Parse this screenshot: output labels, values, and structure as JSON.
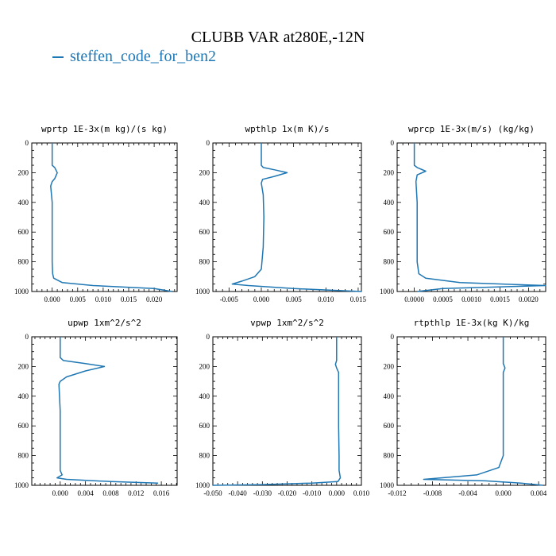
{
  "figure": {
    "title": "CLUBB VAR at280E,-12N",
    "legend_label": "steffen_code_for_ben2",
    "line_color": "#1f77b4"
  },
  "chart_data": [
    {
      "type": "line",
      "title": "wprtp  1E-3x(m kg)/(s kg)",
      "ylim": [
        1000,
        0
      ],
      "yticks": [
        0,
        200,
        400,
        600,
        800,
        1000
      ],
      "ytick_labels": [
        "0",
        "200",
        "400",
        "600",
        "800",
        "1000"
      ],
      "xlim": [
        -0.004,
        0.0245
      ],
      "xticks": [
        0,
        0.005,
        0.01,
        0.015,
        0.02
      ],
      "xtick_labels": [
        "0.000",
        "0.005",
        "0.010",
        "0.015",
        "0.020"
      ],
      "series": [
        {
          "x": [
            0,
            0,
            0,
            0.0005,
            0.001,
            0.0005,
            0,
            -0.0003,
            0,
            0,
            0,
            0.0001,
            0.0003,
            0.002,
            0.008,
            0.02,
            0.0235
          ],
          "y": [
            0,
            100,
            150,
            165,
            200,
            240,
            260,
            290,
            400,
            600,
            800,
            880,
            910,
            940,
            960,
            980,
            1000
          ]
        }
      ]
    },
    {
      "type": "line",
      "title": "wpthlp  1x(m K)/s",
      "ylim": [
        1000,
        0
      ],
      "yticks": [
        0,
        200,
        400,
        600,
        800,
        1000
      ],
      "ytick_labels": [
        "0",
        "200",
        "400",
        "600",
        "800",
        "1000"
      ],
      "xlim": [
        -0.0075,
        0.0155
      ],
      "xticks": [
        -0.005,
        0,
        0.005,
        0.01,
        0.015
      ],
      "xtick_labels": [
        "-0.005",
        "0.000",
        "0.005",
        "0.010",
        "0.015"
      ],
      "series": [
        {
          "x": [
            0,
            0,
            0,
            0.0003,
            0.002,
            0.004,
            0.002,
            0.0002,
            0,
            0.0003,
            0.0004,
            0.0003,
            0,
            -0.001,
            -0.003,
            -0.0045,
            -0.002,
            0.005,
            0.0155
          ],
          "y": [
            0,
            100,
            150,
            165,
            180,
            200,
            225,
            245,
            270,
            350,
            500,
            700,
            850,
            900,
            930,
            950,
            960,
            980,
            1000
          ]
        }
      ]
    },
    {
      "type": "line",
      "title": "wprcp  1E-3x(m/s) (kg/kg)",
      "ylim": [
        1000,
        0
      ],
      "yticks": [
        0,
        200,
        400,
        600,
        800,
        1000
      ],
      "ytick_labels": [
        "0",
        "200",
        "400",
        "600",
        "800",
        "1000"
      ],
      "xlim": [
        -0.0003,
        0.0023
      ],
      "xticks": [
        0,
        0.0005,
        0.001,
        0.0015,
        0.002
      ],
      "xtick_labels": [
        "0.0000",
        "0.0005",
        "0.0010",
        "0.0015",
        "0.0020"
      ],
      "series": [
        {
          "x": [
            0,
            0,
            0,
            5e-05,
            0.0002,
            5e-05,
            3e-05,
            5e-05,
            5e-05,
            5e-05,
            8e-05,
            0.0002,
            0.0008,
            0.0023,
            0.0005,
            5e-05
          ],
          "y": [
            0,
            100,
            150,
            165,
            190,
            215,
            260,
            400,
            600,
            800,
            880,
            910,
            940,
            960,
            980,
            1000
          ]
        }
      ]
    },
    {
      "type": "line",
      "title": "upwp  1xm^2/s^2",
      "ylim": [
        1000,
        0
      ],
      "yticks": [
        0,
        200,
        400,
        600,
        800,
        1000
      ],
      "ytick_labels": [
        "0",
        "200",
        "400",
        "600",
        "800",
        "1000"
      ],
      "xlim": [
        -0.0045,
        0.0185
      ],
      "xticks": [
        0,
        0.004,
        0.008,
        0.012,
        0.016
      ],
      "xtick_labels": [
        "0.000",
        "0.004",
        "0.008",
        "0.012",
        "0.016"
      ],
      "series": [
        {
          "x": [
            0,
            0,
            0,
            0.0005,
            0.004,
            0.007,
            0.004,
            0.001,
            0,
            -0.0002,
            0,
            0,
            0,
            0.0003,
            -0.0005,
            0.001,
            0.008,
            0.0155
          ],
          "y": [
            0,
            100,
            140,
            160,
            180,
            200,
            230,
            270,
            300,
            320,
            500,
            700,
            900,
            930,
            950,
            960,
            975,
            985
          ]
        }
      ]
    },
    {
      "type": "line",
      "title": "vpwp  1xm^2/s^2",
      "ylim": [
        1000,
        0
      ],
      "yticks": [
        0,
        200,
        400,
        600,
        800,
        1000
      ],
      "ytick_labels": [
        "0",
        "200",
        "400",
        "600",
        "800",
        "1000"
      ],
      "xlim": [
        -0.05,
        0.01
      ],
      "xticks": [
        -0.05,
        -0.04,
        -0.03,
        -0.02,
        -0.01,
        0,
        0.01
      ],
      "xtick_labels": [
        "-0.050",
        "-0.040",
        "-0.030",
        "-0.020",
        "-0.010",
        "0.000",
        "0.010"
      ],
      "series": [
        {
          "x": [
            0,
            0,
            0,
            -0.0005,
            0,
            0.0008,
            0.0008,
            0.0008,
            0.001,
            0.001,
            0.0015,
            0.0005,
            -0.01,
            -0.03,
            -0.05
          ],
          "y": [
            0,
            100,
            160,
            185,
            210,
            240,
            400,
            600,
            800,
            900,
            950,
            975,
            985,
            995,
            1000
          ]
        }
      ]
    },
    {
      "type": "line",
      "title": "rtpthlp  1E-3x(kg K)/kg",
      "ylim": [
        1000,
        0
      ],
      "yticks": [
        0,
        200,
        400,
        600,
        800,
        1000
      ],
      "ytick_labels": [
        "0",
        "200",
        "400",
        "600",
        "800",
        "1000"
      ],
      "xlim": [
        -0.012,
        0.0048
      ],
      "xticks": [
        -0.012,
        -0.008,
        -0.004,
        0,
        0.004
      ],
      "xtick_labels": [
        "-0.012",
        "-0.008",
        "-0.004",
        "0.000",
        "0.004"
      ],
      "series": [
        {
          "x": [
            0,
            0,
            0,
            0.0002,
            0,
            0,
            0,
            -0.0005,
            -0.003,
            -0.007,
            -0.009,
            -0.002,
            0.002,
            0.0045
          ],
          "y": [
            0,
            100,
            180,
            210,
            240,
            400,
            800,
            880,
            930,
            950,
            960,
            970,
            985,
            1000
          ]
        }
      ]
    }
  ]
}
